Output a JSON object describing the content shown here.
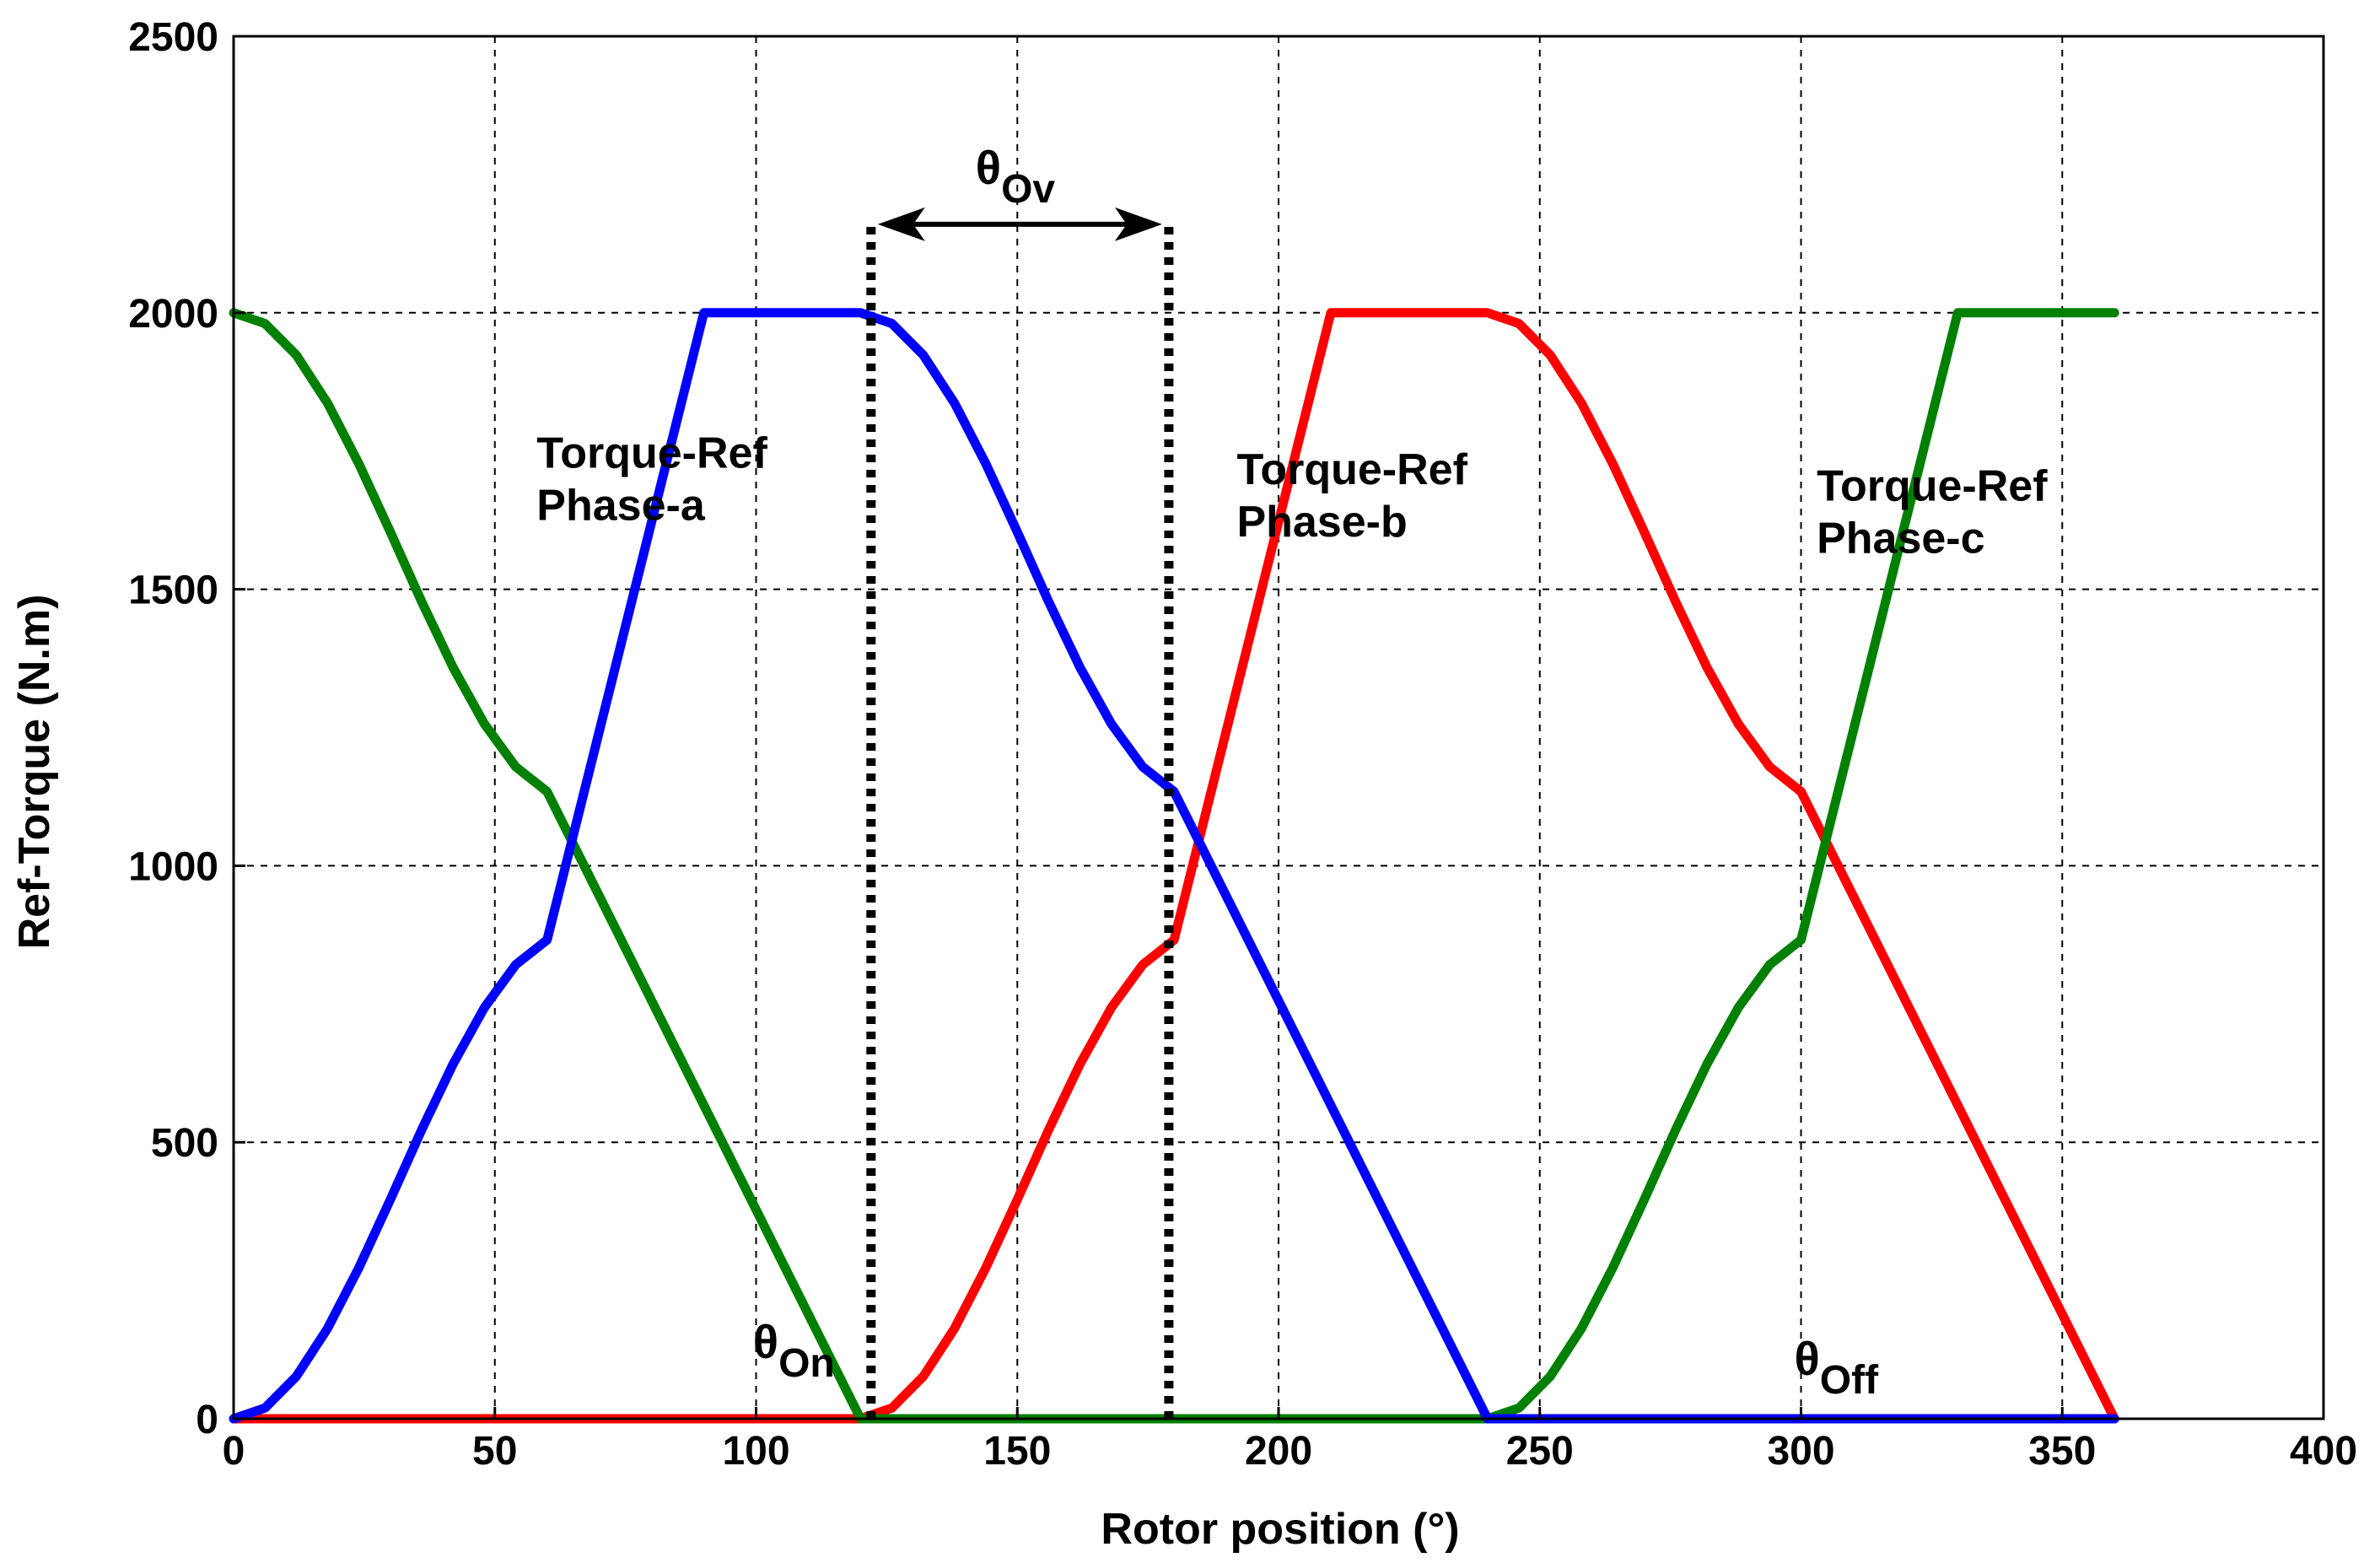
{
  "chart_data": {
    "type": "line",
    "title": "",
    "xlabel": "Rotor position (°)",
    "ylabel": "Ref-Torque (N.m)",
    "xlim": [
      0,
      400
    ],
    "ylim": [
      0,
      2500
    ],
    "xticks": [
      0,
      50,
      100,
      150,
      200,
      250,
      300,
      350,
      400
    ],
    "yticks": [
      0,
      500,
      1000,
      1500,
      2000,
      2500
    ],
    "grid": true,
    "series": [
      {
        "name": "Torque-Ref Phase-a",
        "color": "#0000ff",
        "x": [
          0,
          6,
          12,
          18,
          24,
          30,
          36,
          42,
          48,
          54,
          60,
          90,
          120,
          126,
          132,
          138,
          144,
          150,
          156,
          162,
          168,
          174,
          180,
          240,
          300,
          360
        ],
        "y": [
          0,
          19.6,
          76.4,
          163.6,
          273.6,
          396.6,
          522.6,
          641.4,
          743.6,
          821.1,
          866,
          2000,
          2000,
          1980.4,
          1923.6,
          1836.4,
          1726.4,
          1603.4,
          1477.4,
          1358.6,
          1256.4,
          1178.9,
          1134,
          0,
          0,
          0
        ]
      },
      {
        "name": "Torque-Ref Phase-b",
        "color": "#ff0000",
        "x": [
          0,
          60,
          120,
          126,
          132,
          138,
          144,
          150,
          156,
          162,
          168,
          174,
          180,
          210,
          240,
          246,
          252,
          258,
          264,
          270,
          276,
          282,
          288,
          294,
          300,
          360
        ],
        "y": [
          0,
          0,
          0,
          19.6,
          76.4,
          163.6,
          273.6,
          396.6,
          522.6,
          641.4,
          743.6,
          821.1,
          866,
          2000,
          2000,
          1980.4,
          1923.6,
          1836.4,
          1726.4,
          1603.4,
          1477.4,
          1358.6,
          1256.4,
          1178.9,
          1134,
          0
        ]
      },
      {
        "name": "Torque-Ref Phase-c",
        "color": "#008000",
        "x": [
          0,
          6,
          12,
          18,
          24,
          30,
          36,
          42,
          48,
          54,
          60,
          120,
          180,
          240,
          246,
          252,
          258,
          264,
          270,
          276,
          282,
          288,
          294,
          300,
          330,
          360
        ],
        "y": [
          2000,
          1980.4,
          1923.6,
          1836.4,
          1726.4,
          1603.4,
          1477.4,
          1358.6,
          1256.4,
          1178.9,
          1134,
          0,
          0,
          0,
          19.6,
          76.4,
          163.6,
          273.6,
          396.6,
          522.6,
          641.4,
          743.6,
          821.1,
          866,
          2000,
          2000
        ]
      }
    ],
    "annotations": [
      {
        "id": "phase-a",
        "lines": [
          "Torque-Ref",
          "Phase-a"
        ],
        "x": 58,
        "y": 1720
      },
      {
        "id": "phase-b",
        "lines": [
          "Torque-Ref",
          "Phase-b"
        ],
        "x": 192,
        "y": 1690
      },
      {
        "id": "phase-c",
        "lines": [
          "Torque-Ref",
          "Phase-c"
        ],
        "x": 303,
        "y": 1660
      }
    ],
    "markers": {
      "theta_on": {
        "symbol": "θ",
        "subscript": "On",
        "x": 122,
        "y_from": 0,
        "y_to": 2160
      },
      "theta_ov": {
        "symbol": "θ",
        "subscript": "Ov",
        "x_from": 122,
        "x_to": 179,
        "y": 2160
      },
      "theta_off": {
        "symbol": "θ",
        "subscript": "Off",
        "x": 300,
        "y": 0
      },
      "overlap_end_x": 179
    }
  }
}
